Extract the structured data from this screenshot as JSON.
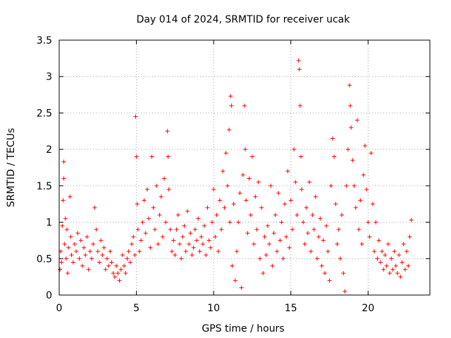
{
  "chart_data": {
    "type": "scatter",
    "title": "Day 014 of 2024, SRMTID for receiver ucak",
    "xlabel": "GPS time / hours",
    "ylabel": "SRMTID / TECUs",
    "xlim": [
      0,
      24
    ],
    "ylim": [
      0,
      3.5
    ],
    "x_ticks": [
      0,
      5,
      10,
      15,
      20
    ],
    "y_ticks": [
      0,
      0.5,
      1,
      1.5,
      2,
      2.5,
      3,
      3.5
    ],
    "x_tick_labels": [
      "0",
      "5",
      "10",
      "15",
      "20"
    ],
    "y_tick_labels": [
      "0",
      "0.5",
      "1",
      "1.5",
      "2",
      "2.5",
      "3",
      "3.5"
    ],
    "grid": true,
    "marker": "+",
    "color": "#ff0000",
    "series": [
      {
        "name": "SRMTID",
        "points": [
          [
            0.05,
            0.35
          ],
          [
            0.1,
            0.6
          ],
          [
            0.15,
            0.45
          ],
          [
            0.2,
            0.95
          ],
          [
            0.25,
            1.3
          ],
          [
            0.3,
            1.83
          ],
          [
            0.3,
            1.6
          ],
          [
            0.35,
            0.7
          ],
          [
            0.4,
            1.05
          ],
          [
            0.45,
            0.5
          ],
          [
            0.5,
            0.9
          ],
          [
            0.55,
            0.3
          ],
          [
            0.6,
            0.65
          ],
          [
            0.7,
            1.35
          ],
          [
            0.75,
            0.8
          ],
          [
            0.8,
            0.55
          ],
          [
            0.9,
            0.45
          ],
          [
            1.0,
            0.7
          ],
          [
            1.1,
            0.6
          ],
          [
            1.2,
            0.85
          ],
          [
            1.3,
            0.5
          ],
          [
            1.4,
            0.75
          ],
          [
            1.5,
            0.4
          ],
          [
            1.6,
            0.65
          ],
          [
            1.7,
            0.55
          ],
          [
            1.8,
            0.8
          ],
          [
            1.9,
            0.35
          ],
          [
            2.0,
            0.6
          ],
          [
            2.1,
            0.5
          ],
          [
            2.2,
            0.7
          ],
          [
            2.3,
            1.2
          ],
          [
            2.4,
            0.9
          ],
          [
            2.5,
            0.6
          ],
          [
            2.6,
            0.45
          ],
          [
            2.7,
            0.75
          ],
          [
            2.8,
            0.55
          ],
          [
            2.9,
            0.65
          ],
          [
            3.0,
            0.35
          ],
          [
            3.1,
            0.5
          ],
          [
            3.2,
            0.4
          ],
          [
            3.3,
            0.6
          ],
          [
            3.4,
            0.45
          ],
          [
            3.5,
            0.3
          ],
          [
            3.6,
            0.25
          ],
          [
            3.7,
            0.4
          ],
          [
            3.8,
            0.3
          ],
          [
            3.9,
            0.2
          ],
          [
            4.0,
            0.35
          ],
          [
            4.1,
            0.55
          ],
          [
            4.2,
            0.4
          ],
          [
            4.3,
            0.3
          ],
          [
            4.4,
            0.5
          ],
          [
            4.5,
            0.6
          ],
          [
            4.6,
            0.45
          ],
          [
            4.7,
            0.7
          ],
          [
            4.8,
            0.8
          ],
          [
            4.9,
            0.55
          ],
          [
            4.95,
            2.45
          ],
          [
            5.0,
            1.9
          ],
          [
            5.05,
            1.25
          ],
          [
            5.1,
            0.9
          ],
          [
            5.2,
            0.6
          ],
          [
            5.3,
            0.75
          ],
          [
            5.4,
            1.0
          ],
          [
            5.5,
            1.3
          ],
          [
            5.6,
            0.85
          ],
          [
            5.7,
            1.45
          ],
          [
            5.8,
            1.05
          ],
          [
            5.9,
            0.65
          ],
          [
            6.0,
            1.9
          ],
          [
            6.1,
            1.2
          ],
          [
            6.2,
            0.9
          ],
          [
            6.3,
            1.5
          ],
          [
            6.4,
            0.7
          ],
          [
            6.5,
            1.1
          ],
          [
            6.6,
            1.35
          ],
          [
            6.7,
            0.8
          ],
          [
            6.8,
            1.6
          ],
          [
            6.9,
            1.0
          ],
          [
            7.0,
            2.25
          ],
          [
            7.05,
            1.9
          ],
          [
            7.1,
            1.45
          ],
          [
            7.2,
            0.9
          ],
          [
            7.3,
            0.6
          ],
          [
            7.4,
            0.75
          ],
          [
            7.5,
            0.55
          ],
          [
            7.6,
            0.9
          ],
          [
            7.7,
            1.1
          ],
          [
            7.8,
            0.7
          ],
          [
            7.9,
            0.5
          ],
          [
            8.0,
            0.8
          ],
          [
            8.1,
            0.95
          ],
          [
            8.2,
            0.6
          ],
          [
            8.3,
            1.15
          ],
          [
            8.4,
            0.7
          ],
          [
            8.5,
            0.85
          ],
          [
            8.6,
            0.55
          ],
          [
            8.7,
            0.65
          ],
          [
            8.8,
            0.9
          ],
          [
            8.9,
            0.75
          ],
          [
            9.0,
            1.05
          ],
          [
            9.1,
            0.6
          ],
          [
            9.2,
            0.8
          ],
          [
            9.3,
            0.7
          ],
          [
            9.4,
            0.95
          ],
          [
            9.5,
            0.55
          ],
          [
            9.6,
            1.2
          ],
          [
            9.7,
            0.75
          ],
          [
            9.8,
            0.65
          ],
          [
            9.9,
            1.0
          ],
          [
            10.0,
            1.45
          ],
          [
            10.1,
            0.8
          ],
          [
            10.2,
            1.1
          ],
          [
            10.3,
            0.6
          ],
          [
            10.4,
            1.3
          ],
          [
            10.5,
            0.9
          ],
          [
            10.6,
            1.7
          ],
          [
            10.7,
            1.2
          ],
          [
            10.8,
            1.95
          ],
          [
            10.9,
            1.5
          ],
          [
            11.0,
            2.27
          ],
          [
            11.05,
            1.0
          ],
          [
            11.1,
            2.73
          ],
          [
            11.15,
            2.6
          ],
          [
            11.2,
            0.4
          ],
          [
            11.3,
            1.25
          ],
          [
            11.4,
            0.2
          ],
          [
            11.5,
            0.6
          ],
          [
            11.6,
            1.0
          ],
          [
            11.7,
            1.4
          ],
          [
            11.8,
            0.1
          ],
          [
            11.9,
            1.65
          ],
          [
            12.0,
            2.6
          ],
          [
            12.05,
            2.0
          ],
          [
            12.1,
            1.3
          ],
          [
            12.2,
            0.85
          ],
          [
            12.3,
            1.6
          ],
          [
            12.4,
            1.1
          ],
          [
            12.5,
            1.9
          ],
          [
            12.6,
            0.7
          ],
          [
            12.7,
            1.35
          ],
          [
            12.8,
            0.9
          ],
          [
            12.9,
            1.55
          ],
          [
            13.0,
            0.5
          ],
          [
            13.1,
            1.2
          ],
          [
            13.2,
            0.3
          ],
          [
            13.3,
            0.8
          ],
          [
            13.4,
            0.55
          ],
          [
            13.5,
            0.95
          ],
          [
            13.6,
            0.7
          ],
          [
            13.7,
            1.5
          ],
          [
            13.8,
            0.4
          ],
          [
            13.9,
            0.85
          ],
          [
            14.0,
            1.1
          ],
          [
            14.1,
            0.6
          ],
          [
            14.2,
            1.4
          ],
          [
            14.3,
            0.75
          ],
          [
            14.4,
            1.0
          ],
          [
            14.5,
            0.5
          ],
          [
            14.6,
            1.25
          ],
          [
            14.7,
            0.8
          ],
          [
            14.8,
            1.7
          ],
          [
            14.9,
            0.65
          ],
          [
            15.0,
            1.3
          ],
          [
            15.1,
            0.9
          ],
          [
            15.2,
            2.0
          ],
          [
            15.3,
            1.55
          ],
          [
            15.4,
            1.1
          ],
          [
            15.5,
            3.22
          ],
          [
            15.55,
            3.1
          ],
          [
            15.6,
            2.6
          ],
          [
            15.65,
            1.9
          ],
          [
            15.7,
            1.45
          ],
          [
            15.8,
            1.0
          ],
          [
            15.9,
            0.7
          ],
          [
            16.0,
            1.2
          ],
          [
            16.1,
            0.85
          ],
          [
            16.2,
            1.55
          ],
          [
            16.3,
            0.6
          ],
          [
            16.4,
            1.1
          ],
          [
            16.5,
            0.9
          ],
          [
            16.6,
            1.35
          ],
          [
            16.7,
            0.5
          ],
          [
            16.8,
            0.8
          ],
          [
            16.9,
            1.05
          ],
          [
            17.0,
            0.4
          ],
          [
            17.1,
            0.75
          ],
          [
            17.2,
            0.3
          ],
          [
            17.3,
            0.95
          ],
          [
            17.4,
            0.6
          ],
          [
            17.5,
            0.2
          ],
          [
            17.6,
            1.5
          ],
          [
            17.7,
            2.15
          ],
          [
            17.8,
            1.9
          ],
          [
            17.9,
            1.25
          ],
          [
            18.0,
            0.7
          ],
          [
            18.1,
            0.9
          ],
          [
            18.2,
            0.5
          ],
          [
            18.3,
            1.1
          ],
          [
            18.4,
            0.3
          ],
          [
            18.5,
            0.05
          ],
          [
            18.6,
            1.5
          ],
          [
            18.7,
            2.0
          ],
          [
            18.8,
            2.88
          ],
          [
            18.85,
            2.6
          ],
          [
            18.9,
            2.3
          ],
          [
            19.0,
            1.85
          ],
          [
            19.1,
            1.5
          ],
          [
            19.2,
            1.2
          ],
          [
            19.3,
            2.4
          ],
          [
            19.4,
            0.9
          ],
          [
            19.5,
            1.3
          ],
          [
            19.6,
            0.7
          ],
          [
            19.7,
            1.65
          ],
          [
            19.8,
            2.05
          ],
          [
            19.9,
            1.45
          ],
          [
            20.0,
            1.0
          ],
          [
            20.1,
            0.8
          ],
          [
            20.2,
            1.95
          ],
          [
            20.3,
            1.25
          ],
          [
            20.4,
            0.6
          ],
          [
            20.5,
            1.0
          ],
          [
            20.6,
            0.5
          ],
          [
            20.7,
            0.75
          ],
          [
            20.8,
            0.45
          ],
          [
            20.9,
            0.6
          ],
          [
            21.0,
            0.35
          ],
          [
            21.1,
            0.55
          ],
          [
            21.2,
            0.4
          ],
          [
            21.3,
            0.7
          ],
          [
            21.4,
            0.3
          ],
          [
            21.5,
            0.5
          ],
          [
            21.6,
            0.35
          ],
          [
            21.7,
            0.6
          ],
          [
            21.8,
            0.4
          ],
          [
            21.9,
            0.3
          ],
          [
            22.0,
            0.55
          ],
          [
            22.1,
            0.25
          ],
          [
            22.2,
            0.45
          ],
          [
            22.3,
            0.7
          ],
          [
            22.4,
            0.35
          ],
          [
            22.5,
            0.6
          ],
          [
            22.6,
            0.4
          ],
          [
            22.7,
            0.8
          ],
          [
            22.8,
            1.03
          ]
        ]
      }
    ]
  }
}
